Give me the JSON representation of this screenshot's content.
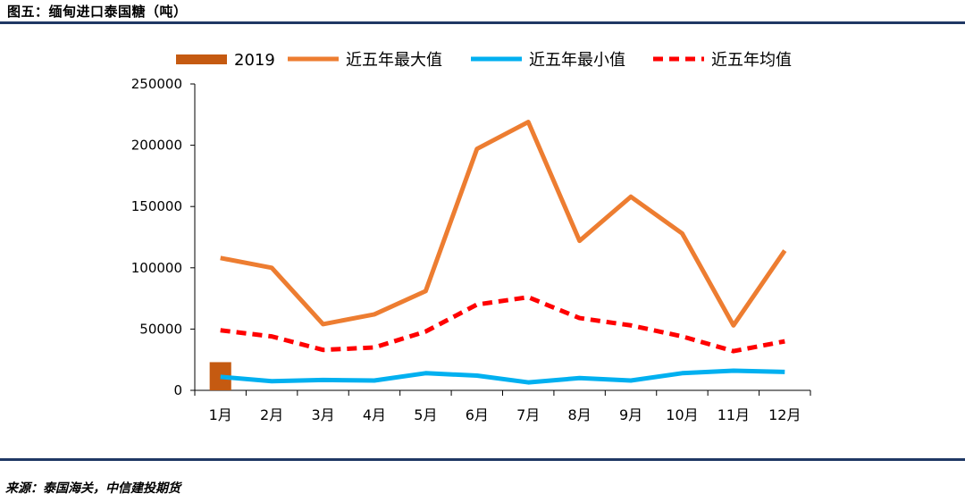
{
  "figure_title": "图五：缅甸进口泰国糖（吨）",
  "source": "来源：泰国海关，中信建投期货",
  "colors": {
    "bar_2019": "#c55a11",
    "max_line": "#ed7d31",
    "min_line": "#00b0f0",
    "avg_line": "#ff0000",
    "rule": "#1f3864"
  },
  "chart_data": {
    "type": "bar+line",
    "title": "缅甸进口泰国糖（吨）",
    "categories": [
      "1月",
      "2月",
      "3月",
      "4月",
      "5月",
      "6月",
      "7月",
      "8月",
      "9月",
      "10月",
      "11月",
      "12月"
    ],
    "ylim": [
      0,
      250000
    ],
    "yticks": [
      0,
      50000,
      100000,
      150000,
      200000,
      250000
    ],
    "ytick_labels": [
      "0",
      "50000",
      "100000",
      "150000",
      "200000",
      "250000"
    ],
    "legend_position": "top",
    "series": [
      {
        "name": "2019",
        "type": "bar",
        "values": [
          23000,
          null,
          null,
          null,
          null,
          null,
          null,
          null,
          null,
          null,
          null,
          null
        ]
      },
      {
        "name": "近五年最大值",
        "type": "line",
        "style": "solid",
        "values": [
          108000,
          100000,
          54000,
          62000,
          81000,
          197000,
          219000,
          122000,
          158000,
          128000,
          53000,
          114000
        ]
      },
      {
        "name": "近五年最小值",
        "type": "line",
        "style": "solid",
        "values": [
          11000,
          7500,
          8500,
          8000,
          14000,
          12000,
          6500,
          10000,
          8000,
          14000,
          16000,
          15000
        ]
      },
      {
        "name": "近五年均值",
        "type": "line",
        "style": "dashed",
        "values": [
          49000,
          44000,
          33000,
          35000,
          48000,
          70000,
          76000,
          59000,
          53000,
          44000,
          32000,
          40000
        ]
      }
    ]
  }
}
